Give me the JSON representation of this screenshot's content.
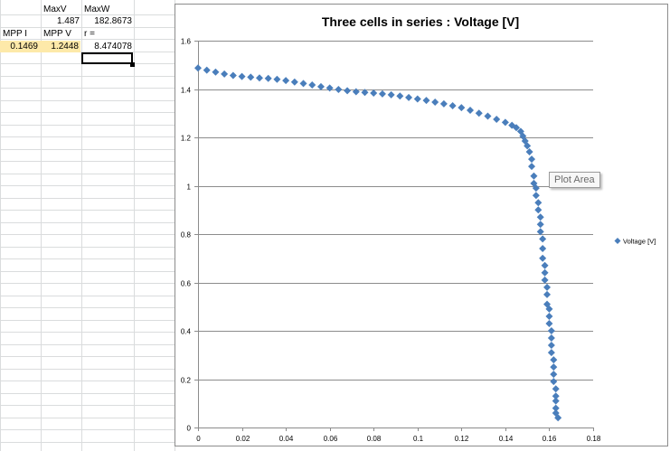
{
  "sheet": {
    "header_maxv": "MaxV",
    "header_maxw": "MaxW",
    "maxv_value": "1.487",
    "maxw_value": "182.8673",
    "label_mppi": "MPP I",
    "label_mppv": "MPP V",
    "label_r": "r =",
    "mppi_value": "0.1469",
    "mppv_value": "1.2448",
    "r_value": "8.474078",
    "highlight_color": "#fde9a9"
  },
  "tooltip": {
    "text": "Plot Area"
  },
  "chart_data": {
    "type": "scatter",
    "title": "Three cells in series : Voltage [V]",
    "xlabel": "",
    "ylabel": "",
    "xlim": [
      0,
      0.18
    ],
    "ylim": [
      0,
      1.6
    ],
    "x_ticks": [
      "0",
      "0.02",
      "0.04",
      "0.06",
      "0.08",
      "0.1",
      "0.12",
      "0.14",
      "0.16",
      "0.18"
    ],
    "y_ticks": [
      "0",
      "0.2",
      "0.4",
      "0.6",
      "0.8",
      "1",
      "1.2",
      "1.4",
      "1.6"
    ],
    "grid": "horizontal",
    "legend_position": "right",
    "marker": "diamond",
    "series": [
      {
        "name": "Voltage [V]",
        "color": "#4a7ebb",
        "points": [
          [
            0.0,
            1.487
          ],
          [
            0.004,
            1.478
          ],
          [
            0.008,
            1.47
          ],
          [
            0.012,
            1.462
          ],
          [
            0.016,
            1.456
          ],
          [
            0.02,
            1.452
          ],
          [
            0.024,
            1.449
          ],
          [
            0.028,
            1.446
          ],
          [
            0.032,
            1.444
          ],
          [
            0.036,
            1.44
          ],
          [
            0.04,
            1.435
          ],
          [
            0.044,
            1.429
          ],
          [
            0.048,
            1.423
          ],
          [
            0.052,
            1.417
          ],
          [
            0.056,
            1.41
          ],
          [
            0.06,
            1.404
          ],
          [
            0.064,
            1.398
          ],
          [
            0.068,
            1.393
          ],
          [
            0.072,
            1.389
          ],
          [
            0.076,
            1.386
          ],
          [
            0.08,
            1.383
          ],
          [
            0.084,
            1.38
          ],
          [
            0.088,
            1.376
          ],
          [
            0.092,
            1.371
          ],
          [
            0.096,
            1.365
          ],
          [
            0.1,
            1.359
          ],
          [
            0.104,
            1.353
          ],
          [
            0.108,
            1.346
          ],
          [
            0.112,
            1.339
          ],
          [
            0.116,
            1.331
          ],
          [
            0.12,
            1.323
          ],
          [
            0.124,
            1.312
          ],
          [
            0.128,
            1.3
          ],
          [
            0.132,
            1.288
          ],
          [
            0.136,
            1.275
          ],
          [
            0.14,
            1.262
          ],
          [
            0.143,
            1.25
          ],
          [
            0.145,
            1.24
          ],
          [
            0.147,
            1.225
          ],
          [
            0.148,
            1.205
          ],
          [
            0.149,
            1.185
          ],
          [
            0.15,
            1.165
          ],
          [
            0.151,
            1.14
          ],
          [
            0.152,
            1.11
          ],
          [
            0.152,
            1.08
          ],
          [
            0.153,
            1.04
          ],
          [
            0.153,
            1.01
          ],
          [
            0.154,
            0.99
          ],
          [
            0.154,
            0.96
          ],
          [
            0.155,
            0.93
          ],
          [
            0.155,
            0.9
          ],
          [
            0.156,
            0.87
          ],
          [
            0.156,
            0.84
          ],
          [
            0.156,
            0.81
          ],
          [
            0.157,
            0.78
          ],
          [
            0.157,
            0.74
          ],
          [
            0.157,
            0.7
          ],
          [
            0.158,
            0.67
          ],
          [
            0.158,
            0.64
          ],
          [
            0.158,
            0.61
          ],
          [
            0.159,
            0.58
          ],
          [
            0.159,
            0.55
          ],
          [
            0.159,
            0.51
          ],
          [
            0.16,
            0.49
          ],
          [
            0.16,
            0.46
          ],
          [
            0.16,
            0.43
          ],
          [
            0.161,
            0.4
          ],
          [
            0.161,
            0.37
          ],
          [
            0.161,
            0.34
          ],
          [
            0.161,
            0.31
          ],
          [
            0.162,
            0.28
          ],
          [
            0.162,
            0.25
          ],
          [
            0.162,
            0.22
          ],
          [
            0.162,
            0.19
          ],
          [
            0.163,
            0.16
          ],
          [
            0.163,
            0.13
          ],
          [
            0.163,
            0.11
          ],
          [
            0.163,
            0.08
          ],
          [
            0.163,
            0.06
          ],
          [
            0.164,
            0.04
          ]
        ]
      }
    ]
  }
}
